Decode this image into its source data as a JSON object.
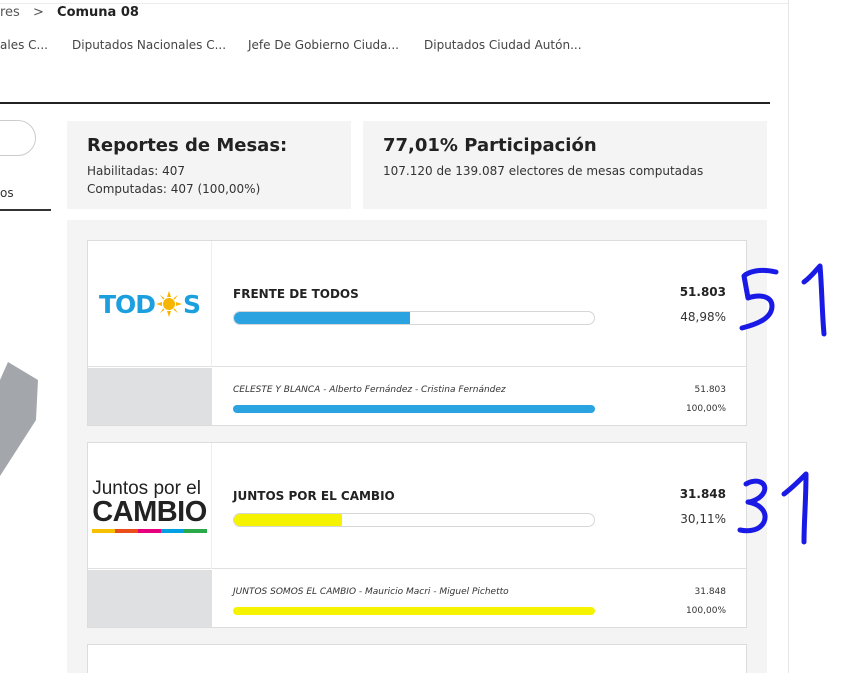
{
  "breadcrumb": {
    "previous": "res",
    "separator": ">",
    "current": "Comuna 08"
  },
  "tabs": [
    "ales C...",
    "Diputados Nacionales C...",
    "Jefe De Gobierno Ciuda...",
    "Diputados Ciudad Autón..."
  ],
  "left_tab_label": "os",
  "mesas": {
    "title": "Reportes de Mesas:",
    "habilitadas": "Habilitadas: 407",
    "computadas": "Computadas: 407 (100,00%)"
  },
  "participacion": {
    "title": "77,01% Participación",
    "detail": "107.120 de 139.087 electores de mesas computadas"
  },
  "parties": [
    {
      "name": "FRENTE DE TODOS",
      "votes": "51.803",
      "percent": "48,98%",
      "share": 48.98,
      "color": "#2aa3e0",
      "logo_text_a": "TOD",
      "logo_text_b": "S",
      "logo_icon": "sun-icon",
      "list": {
        "name": "CELESTE Y BLANCA - Alberto Fernández - Cristina Fernández",
        "votes": "51.803",
        "percent": "100,00%"
      }
    },
    {
      "name": "JUNTOS POR EL CAMBIO",
      "votes": "31.848",
      "percent": "30,11%",
      "share": 30.11,
      "color": "#f5f300",
      "logo_line1": "Juntos por el",
      "logo_line2": "CAMBIO",
      "logo_stripe_colors": [
        "#f6c000",
        "#e94e1b",
        "#e6007e",
        "#00a0e3",
        "#2ba84a"
      ],
      "list": {
        "name": "JUNTOS SOMOS EL CAMBIO - Mauricio Macri - Miguel Pichetto",
        "votes": "31.848",
        "percent": "100,00%"
      }
    }
  ],
  "annotations": {
    "color": "#1a1ae6",
    "mark_1": "51",
    "mark_2": "31"
  }
}
